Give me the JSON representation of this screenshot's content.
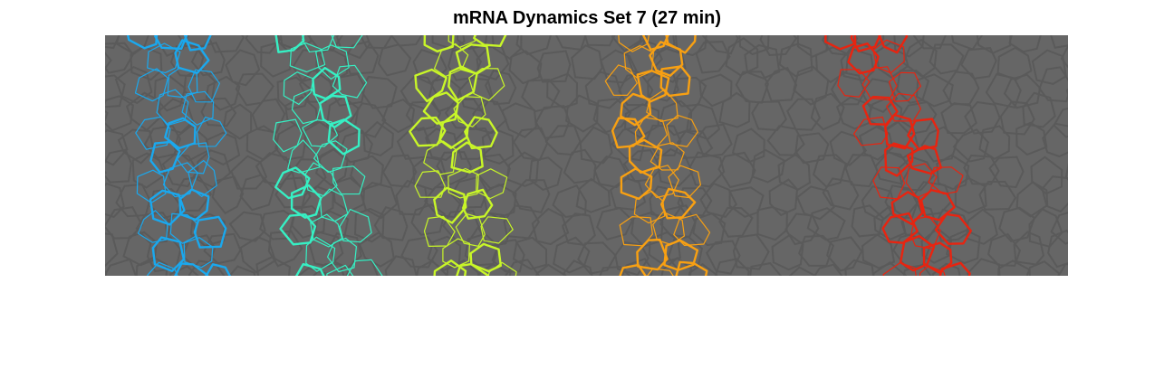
{
  "figure": {
    "title": "mRNA Dynamics Set 7 (27 min)"
  },
  "image": {
    "background_color": "#666666",
    "cell_outline_color": "#5a5a5a",
    "stripes": [
      {
        "color": "#1aa8ee"
      },
      {
        "color": "#36f0c4"
      },
      {
        "color": "#c8f628"
      },
      {
        "color": "#f8a012"
      },
      {
        "color": "#e82410"
      }
    ]
  }
}
